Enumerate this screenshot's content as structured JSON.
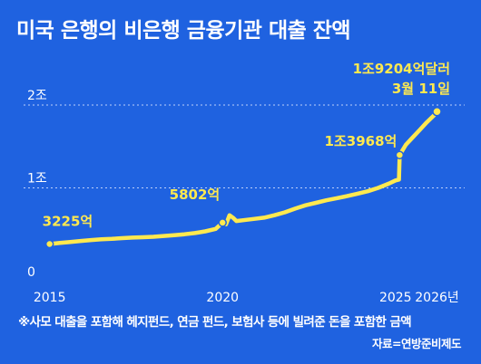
{
  "chart_data": {
    "type": "line",
    "title": "미국 은행의 비은행 금융기관 대출 잔액",
    "xlabel": "",
    "ylabel": "",
    "y_unit_ticks": [
      {
        "value": 0,
        "label": "0"
      },
      {
        "value": 10000,
        "label": "1조"
      },
      {
        "value": 20000,
        "label": "2조"
      }
    ],
    "x_ticks": [
      {
        "value": 2015,
        "label": "2015"
      },
      {
        "value": 2020,
        "label": "2020"
      },
      {
        "value": 2025,
        "label": "2025"
      },
      {
        "value": 2026.2,
        "label": "2026년"
      }
    ],
    "xlim": [
      2014.3,
      2027.0
    ],
    "ylim": [
      0,
      20000
    ],
    "grid": {
      "horizontal_dashed": true
    },
    "series": [
      {
        "points": [
          [
            2015.0,
            3225
          ],
          [
            2015.3,
            3360
          ],
          [
            2015.6,
            3480
          ],
          [
            2015.9,
            3600
          ],
          [
            2016.2,
            3700
          ],
          [
            2016.5,
            3800
          ],
          [
            2016.8,
            3850
          ],
          [
            2017.1,
            3930
          ],
          [
            2017.4,
            4000
          ],
          [
            2017.7,
            4040
          ],
          [
            2018.0,
            4100
          ],
          [
            2018.3,
            4200
          ],
          [
            2018.6,
            4300
          ],
          [
            2018.9,
            4400
          ],
          [
            2019.2,
            4550
          ],
          [
            2019.5,
            4750
          ],
          [
            2019.8,
            5050
          ],
          [
            2020.0,
            5802
          ],
          [
            2020.1,
            5600
          ],
          [
            2020.2,
            6700
          ],
          [
            2020.3,
            6400
          ],
          [
            2020.4,
            6000
          ],
          [
            2020.6,
            6100
          ],
          [
            2020.9,
            6250
          ],
          [
            2021.2,
            6400
          ],
          [
            2021.5,
            6700
          ],
          [
            2021.8,
            7050
          ],
          [
            2022.1,
            7500
          ],
          [
            2022.4,
            7900
          ],
          [
            2022.7,
            8200
          ],
          [
            2023.0,
            8500
          ],
          [
            2023.3,
            8750
          ],
          [
            2023.6,
            9000
          ],
          [
            2023.9,
            9300
          ],
          [
            2024.2,
            9600
          ],
          [
            2024.5,
            10000
          ],
          [
            2024.8,
            10500
          ],
          [
            2025.0,
            10900
          ],
          [
            2025.1,
            11000
          ],
          [
            2025.12,
            13968
          ],
          [
            2025.3,
            15200
          ],
          [
            2025.5,
            16100
          ],
          [
            2025.7,
            17000
          ],
          [
            2025.9,
            17900
          ],
          [
            2026.1,
            18700
          ],
          [
            2026.2,
            19204
          ]
        ]
      }
    ],
    "annotations": [
      {
        "x": 2015.0,
        "y": 3225,
        "label": "3225억",
        "anchor": "start",
        "dx": -8,
        "dy": -20
      },
      {
        "x": 2020.0,
        "y": 5802,
        "label": "5802억",
        "anchor": "end",
        "dx": -3,
        "dy": -26
      },
      {
        "x": 2025.12,
        "y": 13968,
        "label": "1조3968억",
        "anchor": "end",
        "dx": -3,
        "dy": -10
      }
    ],
    "end_label": {
      "x": 2026.2,
      "y": 19204,
      "value": "1조9204억달러",
      "date": "3월 11일"
    },
    "colors": {
      "line": "#ffe94f",
      "background": "#1f62e0",
      "text": "#ffffff",
      "grid": "#d9e4ff"
    }
  },
  "footnote": "※사모 대출을 포함해 헤지펀드, 연금 펀드, 보험사 등에 빌려준 돈을 포함한 금액",
  "source": "자료=연방준비제도"
}
